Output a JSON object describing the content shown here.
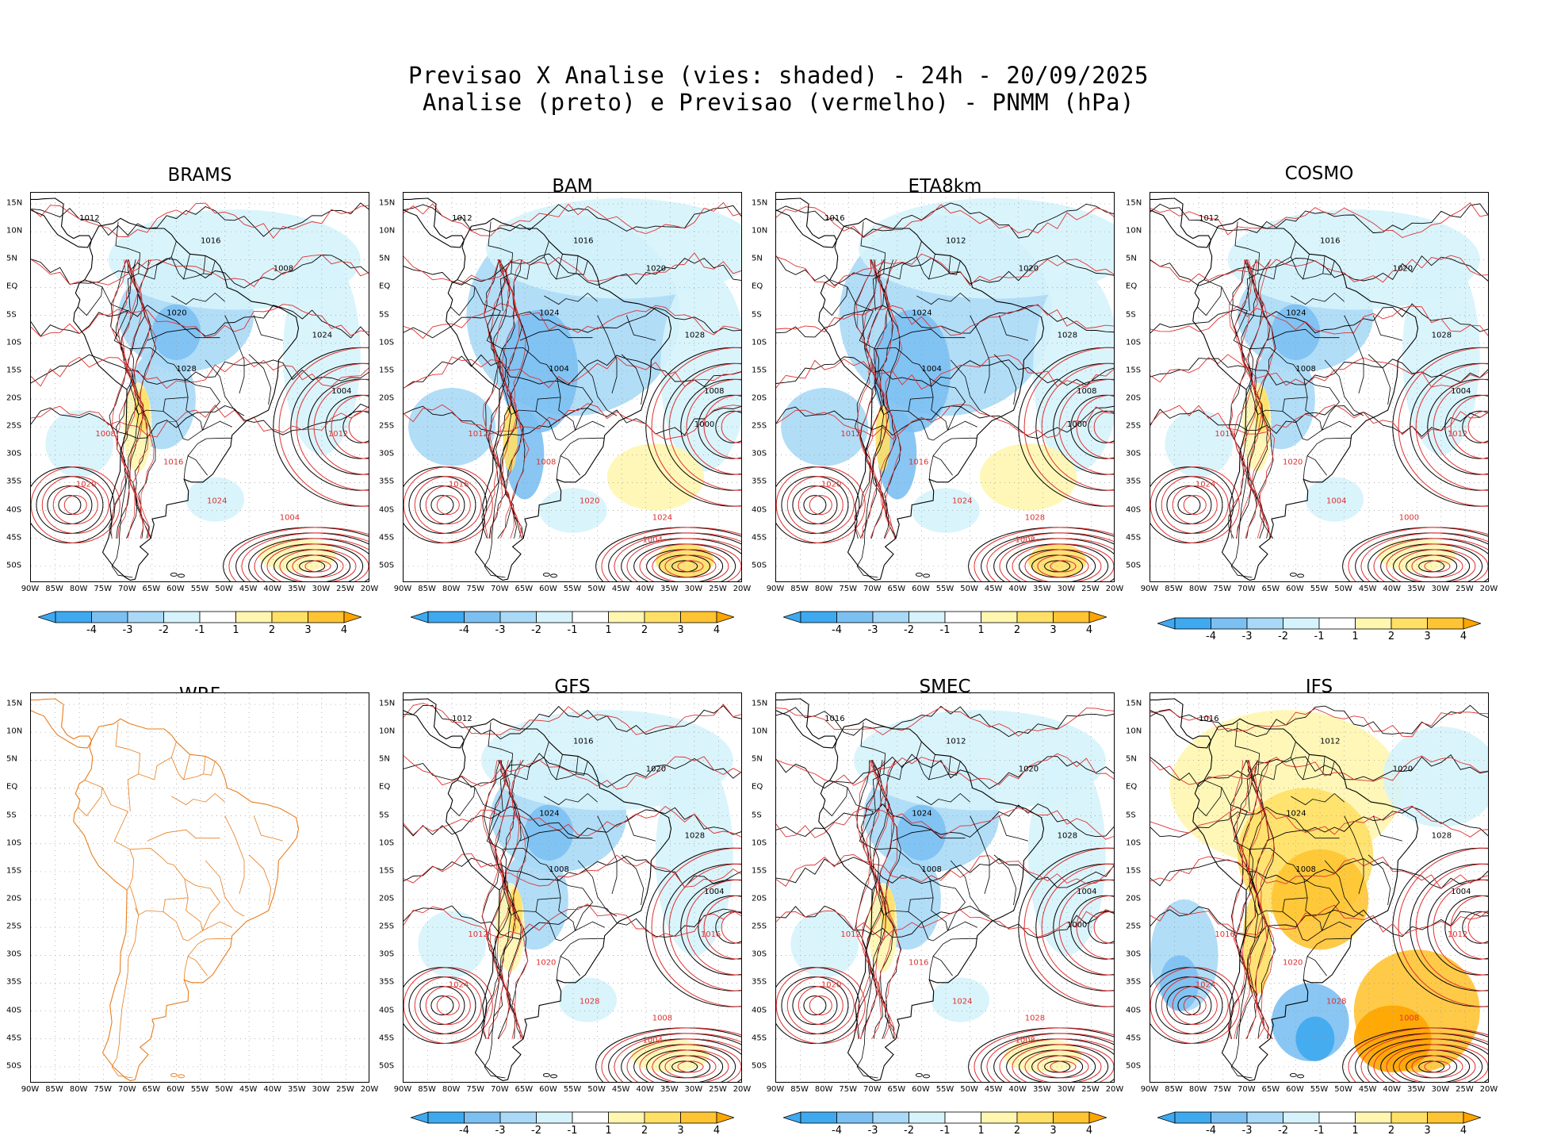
{
  "title": {
    "line1": "Previsao X Analise (vies: shaded) - 24h - 20/09/2025",
    "line2": "Analise (preto) e Previsao (vermelho) - PNMM (hPa)"
  },
  "axes": {
    "lat_labels": [
      "15N",
      "10N",
      "5N",
      "EQ",
      "5S",
      "10S",
      "15S",
      "20S",
      "25S",
      "30S",
      "35S",
      "40S",
      "45S",
      "50S"
    ],
    "lon_labels": [
      "90W",
      "85W",
      "80W",
      "75W",
      "70W",
      "65W",
      "60W",
      "55W",
      "50W",
      "45W",
      "40W",
      "35W",
      "30W",
      "25W",
      "20W"
    ]
  },
  "colorbar": {
    "labels": [
      "-4",
      "-3",
      "-2",
      "-1",
      "1",
      "2",
      "3",
      "4"
    ],
    "colors": [
      "#3fa9f0",
      "#7cc0f2",
      "#a9d9f6",
      "#d6f3fb",
      "#ffffff",
      "#fff6b0",
      "#ffe066",
      "#ffc433",
      "#ffa500"
    ]
  },
  "colors": {
    "analysis": "#000000",
    "forecast": "#e03030",
    "wrf_coast": "#e87d1e",
    "grid": "#9a9a9a"
  },
  "panels": [
    {
      "name": "BRAMS",
      "bias": "neg-light",
      "has_colorbar": true,
      "labels_black": [
        "1012",
        "1016",
        "1008",
        "1020",
        "1024",
        "1028",
        "1004"
      ],
      "labels_red": [
        "1012",
        "1008",
        "1016",
        "1020",
        "1024",
        "1004"
      ]
    },
    {
      "name": "BAM",
      "bias": "neg-strong",
      "has_colorbar": true,
      "labels_black": [
        "1012",
        "1016",
        "1020",
        "1024",
        "1028",
        "1004",
        "1008",
        "1000"
      ],
      "labels_red": [
        "1012",
        "1008",
        "1016",
        "1020",
        "1024",
        "1004"
      ]
    },
    {
      "name": "ETA8km",
      "bias": "neg-strong",
      "has_colorbar": true,
      "labels_black": [
        "1016",
        "1012",
        "1020",
        "1024",
        "1028",
        "1004",
        "1008",
        "1000"
      ],
      "labels_red": [
        "1012",
        "1016",
        "1020",
        "1024",
        "1028",
        "1008"
      ]
    },
    {
      "name": "COSMO",
      "bias": "neg-light",
      "has_colorbar": true,
      "labels_black": [
        "1012",
        "1016",
        "1020",
        "1024",
        "1028",
        "1008",
        "1004"
      ],
      "labels_red": [
        "1012",
        "1016",
        "1020",
        "1024",
        "1004",
        "1000"
      ]
    },
    {
      "name": "WRF",
      "bias": "none",
      "has_colorbar": false,
      "labels_black": [],
      "labels_red": []
    },
    {
      "name": "GFS",
      "bias": "neg-light",
      "has_colorbar": true,
      "labels_black": [
        "1012",
        "1016",
        "1020",
        "1024",
        "1028",
        "1008",
        "1004"
      ],
      "labels_red": [
        "1016",
        "1012",
        "1020",
        "1024",
        "1028",
        "1008",
        "1004"
      ]
    },
    {
      "name": "SMEC",
      "bias": "neg-light",
      "has_colorbar": true,
      "labels_black": [
        "1016",
        "1012",
        "1020",
        "1024",
        "1028",
        "1008",
        "1004",
        "1000"
      ],
      "labels_red": [
        "1012",
        "1016",
        "1020",
        "1024",
        "1028",
        "1008"
      ]
    },
    {
      "name": "IFS",
      "bias": "pos-strong",
      "has_colorbar": true,
      "labels_black": [
        "1016",
        "1012",
        "1020",
        "1024",
        "1028",
        "1008",
        "1004"
      ],
      "labels_red": [
        "1012",
        "1016",
        "1020",
        "1024",
        "1028",
        "1008"
      ]
    }
  ]
}
